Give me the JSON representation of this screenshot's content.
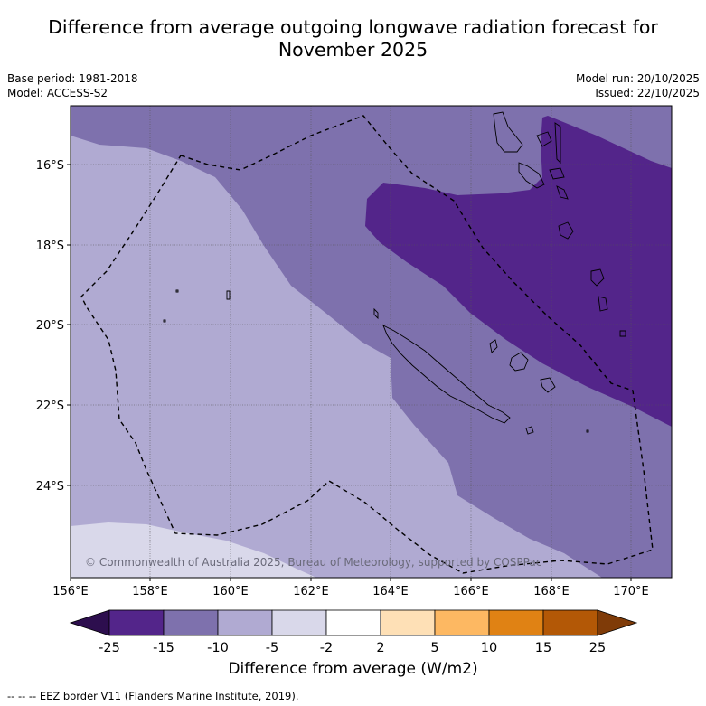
{
  "title_line1": "Difference from average outgoing longwave radiation forecast for",
  "title_line2": "November 2025",
  "base_period": "Base period: 1981-2018",
  "model": "Model: ACCESS-S2",
  "model_run": "Model run: 20/10/2025",
  "issued": "Issued: 22/10/2025",
  "copyright": "© Commonwealth of Australia 2025, Bureau of Meteorology, supported by COSPPac",
  "lat_labels": [
    "16°S",
    "18°S",
    "20°S",
    "22°S",
    "24°S"
  ],
  "lon_labels": [
    "156°E",
    "158°E",
    "160°E",
    "162°E",
    "164°E",
    "166°E",
    "168°E",
    "170°E"
  ],
  "colorbar": {
    "ticks": [
      "-25",
      "-15",
      "-10",
      "-5",
      "-2",
      "2",
      "5",
      "10",
      "15",
      "25"
    ],
    "colors": [
      "#2d0e4e",
      "#53258a",
      "#7e71ad",
      "#b0aad2",
      "#d9d8ea",
      "#ffffff",
      "#fee0b6",
      "#fdb862",
      "#e08214",
      "#b35806",
      "#7f3b08"
    ],
    "label": "Difference from average (W/m2)"
  },
  "footer": "--  --  -- EEZ border V11 (Flanders Marine Institute, 2019)."
}
